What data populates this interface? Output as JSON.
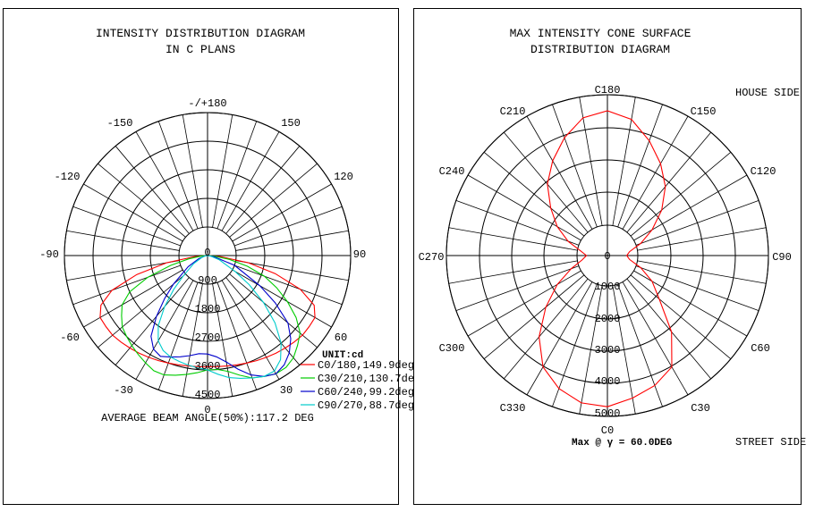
{
  "left": {
    "title_line1": "INTENSITY DISTRIBUTION DIAGRAM",
    "title_line2": "IN C PLANS",
    "angle_labels": {
      "top": "-/+180",
      "m150": "-150",
      "p150": "150",
      "m120": "-120",
      "p120": "120",
      "m90": "-90",
      "p90": "90",
      "m60": "-60",
      "p60": "60",
      "m30": "-30",
      "p30": "30",
      "bottom": "0"
    },
    "center_label": "0",
    "radial_labels": [
      "900",
      "1800",
      "2700",
      "3600",
      "4500"
    ],
    "unit_label": "UNIT:cd",
    "footer": "AVERAGE BEAM ANGLE(50%):117.2 DEG"
  },
  "right": {
    "title_line1": "MAX INTENSITY CONE SURFACE",
    "title_line2": "DISTRIBUTION DIAGRAM",
    "c_labels": {
      "c180": "C180",
      "c150": "C150",
      "c120": "C120",
      "c90": "C90",
      "c60": "C60",
      "c30": "C30",
      "c0": "C0",
      "c330": "C330",
      "c300": "C300",
      "c270": "C270",
      "c240": "C240",
      "c210": "C210"
    },
    "center_label": "0",
    "radial_labels": [
      "1000",
      "2000",
      "3000",
      "4000",
      "5000"
    ],
    "house_side": "HOUSE SIDE",
    "street_side": "STREET SIDE",
    "max_note": "Max @ γ = 60.0DEG"
  },
  "colors": {
    "c0": "#ff0000",
    "c30": "#00cc00",
    "c60": "#0000cc",
    "c90": "#00cccc",
    "cone": "#ff0000"
  },
  "chart_data": [
    {
      "type": "line",
      "subtype": "polar",
      "title": "INTENSITY DISTRIBUTION DIAGRAM IN C PLANS",
      "unit": "cd",
      "rmax": 4500,
      "angle_range": [
        -180,
        180
      ],
      "grid": true,
      "series": [
        {
          "name": "C0/180,149.9deg",
          "angles": [
            -90,
            -85,
            -80,
            -75,
            -70,
            -65,
            -60,
            -55,
            -50,
            -45,
            -40,
            -35,
            -30,
            -25,
            -20,
            -15,
            -10,
            -5,
            0,
            5,
            10,
            15,
            20,
            25,
            30,
            35,
            40,
            45,
            50,
            55,
            60,
            65,
            70,
            75,
            80,
            85,
            90
          ],
          "values": [
            0,
            400,
            1300,
            2300,
            3200,
            3700,
            3900,
            3900,
            3900,
            3850,
            3800,
            3750,
            3700,
            3650,
            3600,
            3560,
            3530,
            3510,
            3500,
            3510,
            3530,
            3560,
            3600,
            3650,
            3700,
            3750,
            3800,
            3850,
            3900,
            3900,
            3900,
            3700,
            3100,
            2200,
            1300,
            400,
            0
          ]
        },
        {
          "name": "C30/210,130.7deg",
          "angles": [
            -90,
            -85,
            -80,
            -75,
            -70,
            -65,
            -60,
            -55,
            -50,
            -45,
            -40,
            -35,
            -30,
            -25,
            -20,
            -15,
            -10,
            -5,
            0,
            5,
            10,
            15,
            20,
            25,
            30,
            35,
            40,
            45,
            50,
            55,
            60,
            65,
            70,
            75,
            80,
            85,
            90
          ],
          "values": [
            0,
            200,
            600,
            1200,
            2000,
            2700,
            3100,
            3300,
            3500,
            3600,
            3700,
            3800,
            3900,
            4000,
            4000,
            3900,
            3800,
            3700,
            3600,
            3600,
            3700,
            3900,
            4100,
            4200,
            4300,
            4300,
            4200,
            4000,
            3800,
            3400,
            2900,
            2400,
            1900,
            1300,
            700,
            200,
            0
          ]
        },
        {
          "name": "C60/240,99.2deg",
          "angles": [
            -90,
            -80,
            -70,
            -60,
            -50,
            -45,
            -40,
            -35,
            -30,
            -25,
            -20,
            -15,
            -10,
            -5,
            0,
            5,
            10,
            15,
            20,
            25,
            30,
            35,
            40,
            45,
            50,
            55,
            60,
            70,
            80,
            90
          ],
          "values": [
            0,
            100,
            300,
            700,
            1400,
            1900,
            2500,
            3100,
            3400,
            3500,
            3400,
            3300,
            3200,
            3100,
            3100,
            3200,
            3400,
            3700,
            4000,
            4200,
            4300,
            4200,
            4000,
            3700,
            3300,
            2600,
            1900,
            900,
            200,
            0
          ]
        },
        {
          "name": "C90/270,88.7deg",
          "angles": [
            -90,
            -80,
            -70,
            -60,
            -50,
            -45,
            -40,
            -35,
            -30,
            -25,
            -20,
            -15,
            -10,
            -5,
            0,
            5,
            10,
            15,
            20,
            25,
            30,
            35,
            40,
            45,
            50,
            55,
            60,
            70,
            80,
            90
          ],
          "values": [
            0,
            80,
            200,
            500,
            1000,
            1500,
            2100,
            2700,
            3100,
            3300,
            3400,
            3450,
            3500,
            3550,
            3600,
            3750,
            3900,
            4000,
            4100,
            4200,
            4200,
            4000,
            3600,
            3000,
            2300,
            1600,
            1000,
            400,
            100,
            0
          ]
        }
      ]
    },
    {
      "type": "line",
      "subtype": "polar",
      "title": "MAX INTENSITY CONE SURFACE DISTRIBUTION DIAGRAM",
      "rmax": 5000,
      "gamma_deg": 60,
      "grid": true,
      "series": [
        {
          "name": "cone",
          "angles": [
            0,
            10,
            20,
            30,
            40,
            50,
            60,
            70,
            80,
            90,
            100,
            110,
            120,
            130,
            140,
            150,
            160,
            170,
            180,
            190,
            200,
            210,
            220,
            230,
            240,
            250,
            260,
            270,
            280,
            290,
            300,
            310,
            320,
            330,
            340,
            350,
            360
          ],
          "values": [
            4700,
            4500,
            4300,
            4000,
            3100,
            2100,
            1600,
            1100,
            700,
            600,
            700,
            1100,
            1600,
            2200,
            2800,
            3300,
            3800,
            4300,
            4500,
            4350,
            3900,
            3400,
            2900,
            2300,
            1800,
            1300,
            850,
            650,
            800,
            1200,
            1800,
            2500,
            3300,
            4000,
            4400,
            4650,
            4700
          ]
        }
      ]
    }
  ]
}
